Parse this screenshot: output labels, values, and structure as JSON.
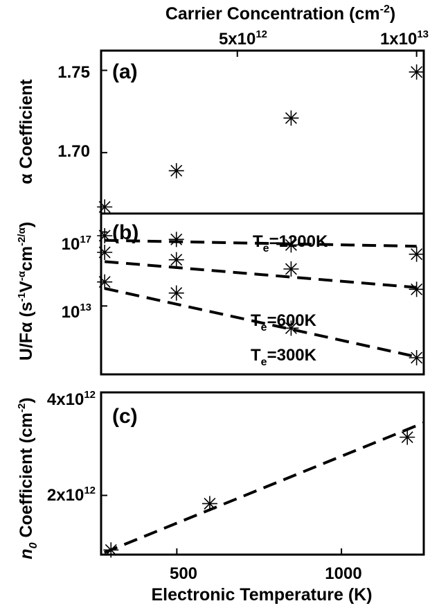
{
  "chart_data": {
    "type": "scatter",
    "shared_x": {
      "label": "Electronic Temperature (K)",
      "range": [
        270,
        1250
      ],
      "ticks": [
        500,
        1000
      ],
      "tick_labels": [
        "500",
        "1000"
      ]
    },
    "top_x": {
      "label": "Carrier Concentration (cm",
      "label_sup": "-2",
      "label_tail": ")",
      "range": [
        1200000000000.0,
        10200000000000.0
      ],
      "ticks": [
        5000000000000.0,
        10000000000000.0
      ],
      "tick_labels": [
        {
          "base": "5x10",
          "exp": "12"
        },
        {
          "base": "1x10",
          "exp": "13"
        }
      ]
    },
    "panels": [
      {
        "label": "(a)",
        "ylabel": "α Coefficient",
        "ylim": [
          1.663,
          1.762
        ],
        "yticks": [
          1.7,
          1.75
        ],
        "ytick_labels": [
          "1.70",
          "1.75"
        ],
        "points": {
          "x": [
            1300000000000.0,
            3300000000000.0,
            6500000000000.0,
            10000000000000.0
          ],
          "y": [
            1.667,
            1.689,
            1.721,
            1.749
          ]
        }
      },
      {
        "label": "(b)",
        "ylabel": {
          "base": "U/F",
          "parts": [
            "α (s",
            "-1",
            "V",
            "-α",
            "cm",
            "-2/α",
            ")"
          ]
        },
        "yscale": "log",
        "ylog_range": [
          9.3,
          18.0
        ],
        "yticks_log": [
          13,
          17
        ],
        "ytick_labels": [
          {
            "base": "10",
            "exp": "17"
          },
          {
            "base": "10",
            "exp": "13"
          }
        ],
        "series": [
          {
            "name": "T",
            "name_sub": "e",
            "name_tail": "=1200K",
            "x_concentration": [
              1300000000000.0,
              3300000000000.0,
              6500000000000.0,
              10000000000000.0
            ],
            "log10_y": [
              16.8,
              16.6,
              16.3,
              15.8
            ],
            "fit_log10_y": [
              16.55,
              16.23
            ]
          },
          {
            "name": "T",
            "name_sub": "e",
            "name_tail": "=600K",
            "x_concentration": [
              1300000000000.0,
              3300000000000.0,
              6500000000000.0,
              10000000000000.0
            ],
            "log10_y": [
              15.9,
              15.5,
              15.0,
              13.9
            ],
            "fit_log10_y": [
              15.4,
              14.0
            ]
          },
          {
            "name": "T",
            "name_sub": "e",
            "name_tail": "=300K",
            "x_concentration": [
              1300000000000.0,
              3300000000000.0,
              6500000000000.0,
              10000000000000.0
            ],
            "log10_y": [
              14.3,
              13.7,
              11.8,
              10.2
            ],
            "fit_log10_y": [
              13.95,
              10.25
            ]
          }
        ]
      },
      {
        "label": "(c)",
        "ylabel": {
          "base": "n",
          "sub": "0",
          "rest": " Coefficient (cm",
          "sup": "-2",
          "tail": ")"
        },
        "ylim": [
          850000000000.0,
          4000000000000.0
        ],
        "yticks": [
          2000000000000.0,
          4000000000000.0
        ],
        "ytick_labels": [
          {
            "base": "2x10",
            "exp": "12"
          },
          {
            "base": "4x10",
            "exp": "12"
          }
        ],
        "points": {
          "x": [
            300,
            600,
            1200
          ],
          "y": [
            940000000000.0,
            1840000000000.0,
            3130000000000.0
          ]
        },
        "fit": {
          "x": [
            280,
            1250
          ],
          "y": [
            890000000000.0,
            3410000000000.0
          ]
        }
      }
    ]
  }
}
